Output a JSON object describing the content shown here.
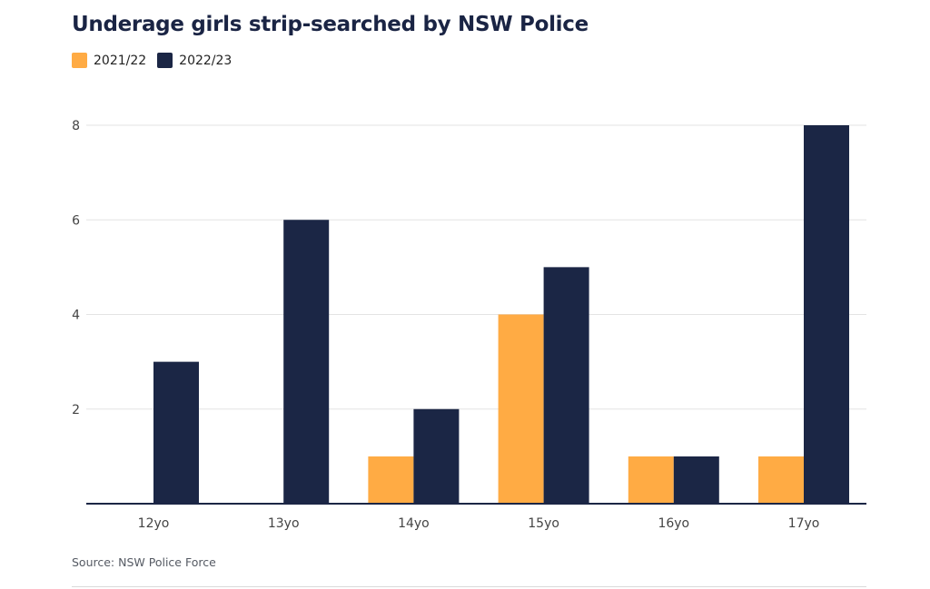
{
  "chart_data": {
    "type": "bar",
    "title": "Underage girls strip-searched by NSW Police",
    "categories": [
      "12yo",
      "13yo",
      "14yo",
      "15yo",
      "16yo",
      "17yo"
    ],
    "series": [
      {
        "name": "2021/22",
        "color": "#ffab44",
        "values": [
          0,
          0,
          1,
          4,
          1,
          1
        ]
      },
      {
        "name": "2022/23",
        "color": "#1b2645",
        "values": [
          3,
          6,
          2,
          5,
          1,
          8
        ]
      }
    ],
    "yticks": [
      2,
      4,
      6,
      8
    ],
    "ylim": [
      0,
      8
    ],
    "grid": true,
    "legend": "top-left",
    "xlabel": "",
    "ylabel": ""
  },
  "source": "Source: NSW Police Force"
}
